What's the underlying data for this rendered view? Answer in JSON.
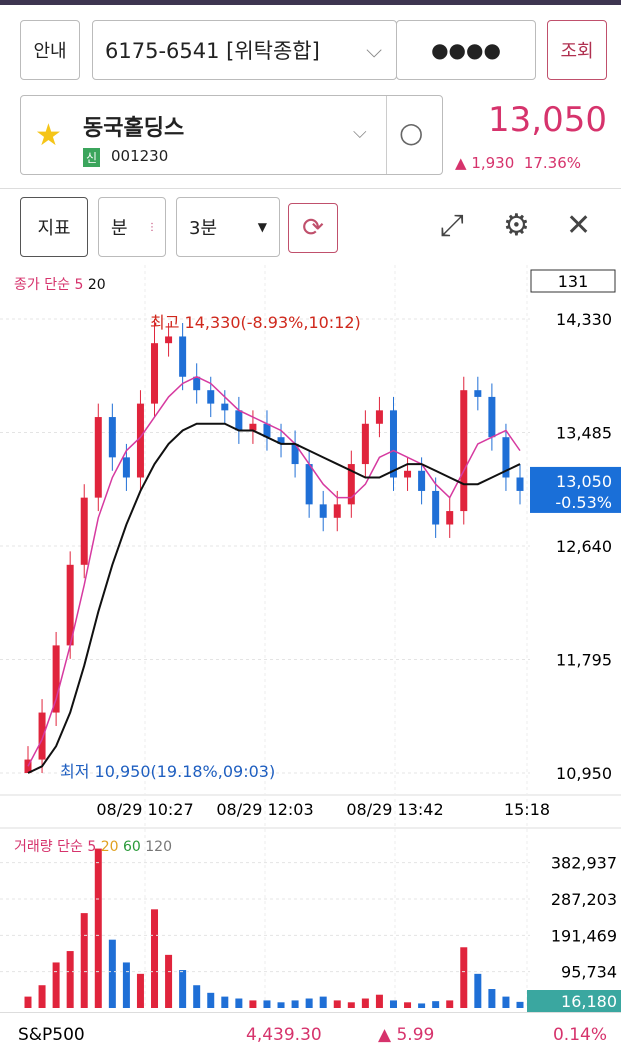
{
  "header": {
    "guide": "안내",
    "account": "6175-6541 [위탁종합]",
    "password": "●●●●",
    "query": "조회"
  },
  "stock": {
    "name": "동국홀딩스",
    "badge": "신",
    "code": "001230",
    "price": "13,050",
    "change": "1,930",
    "change_pct": "17.36%"
  },
  "toolbar": {
    "indicator": "지표",
    "period_type": "분",
    "period": "3분"
  },
  "price_chart": {
    "type": "candlestick",
    "legend_label": "종가 단순",
    "ma1": "5",
    "ma2": "20",
    "box_value": "131",
    "ylim": [
      10950,
      14330
    ],
    "yticks": [
      {
        "value": 14330,
        "label": "14,330"
      },
      {
        "value": 13485,
        "label": "13,485"
      },
      {
        "value": 12640,
        "label": "12,640"
      },
      {
        "value": 11795,
        "label": "11,795"
      },
      {
        "value": 10950,
        "label": "10,950"
      }
    ],
    "high_label": "최고 14,330(-8.93%,10:12)",
    "low_label": "최저 10,950(19.18%,09:03)",
    "current_price": "13,050",
    "current_pct": "-0.53%",
    "x_labels": [
      "08/29 10:27",
      "08/29 12:03",
      "08/29 13:42",
      "15:18"
    ],
    "open": [
      10950,
      11050,
      11400,
      11900,
      12500,
      13000,
      13600,
      13300,
      13150,
      13700,
      14150,
      14200,
      13900,
      13800,
      13700,
      13650,
      13500,
      13550,
      13450,
      13400,
      13250,
      12950,
      12850,
      12950,
      13250,
      13550,
      13650,
      13150,
      13200,
      13050,
      12800,
      12900,
      13800,
      13750,
      13450,
      13150
    ],
    "high": [
      11150,
      11500,
      12000,
      12600,
      13100,
      13700,
      13700,
      13400,
      13800,
      14330,
      14300,
      14300,
      14000,
      13900,
      13800,
      13750,
      13650,
      13650,
      13550,
      13500,
      13350,
      13050,
      13050,
      13350,
      13650,
      13750,
      13750,
      13300,
      13300,
      13150,
      13000,
      13900,
      13900,
      13850,
      13550,
      13250
    ],
    "low": [
      10950,
      10950,
      11300,
      11800,
      12400,
      12900,
      13200,
      13050,
      13050,
      13600,
      14050,
      13800,
      13700,
      13600,
      13550,
      13400,
      13400,
      13350,
      13300,
      13150,
      12850,
      12750,
      12750,
      12850,
      13150,
      13450,
      13050,
      13050,
      12950,
      12700,
      12700,
      12800,
      13650,
      13350,
      13050,
      12950
    ],
    "close": [
      11050,
      11400,
      11900,
      12500,
      13000,
      13600,
      13300,
      13150,
      13700,
      14150,
      14200,
      13900,
      13800,
      13700,
      13650,
      13500,
      13550,
      13450,
      13400,
      13250,
      12950,
      12850,
      12950,
      13250,
      13550,
      13650,
      13150,
      13200,
      13050,
      12800,
      12900,
      13800,
      13750,
      13450,
      13150,
      13050
    ],
    "ma5": [
      11000,
      11200,
      11500,
      11900,
      12350,
      12850,
      13150,
      13350,
      13450,
      13600,
      13750,
      13850,
      13900,
      13850,
      13750,
      13650,
      13600,
      13550,
      13500,
      13400,
      13250,
      13100,
      13000,
      13000,
      13100,
      13300,
      13350,
      13300,
      13250,
      13100,
      13000,
      13200,
      13400,
      13450,
      13500,
      13350
    ],
    "ma20": [
      10950,
      11000,
      11150,
      11400,
      11750,
      12150,
      12500,
      12800,
      13050,
      13250,
      13400,
      13500,
      13550,
      13550,
      13550,
      13500,
      13500,
      13450,
      13400,
      13400,
      13350,
      13300,
      13250,
      13200,
      13150,
      13150,
      13200,
      13250,
      13250,
      13200,
      13150,
      13100,
      13100,
      13150,
      13200,
      13250
    ]
  },
  "volume_chart": {
    "type": "bar",
    "legend_label": "거래량 단순",
    "ma1": "5",
    "ma2": "20",
    "ma3": "60",
    "ma4": "120",
    "ylim": [
      0,
      440000
    ],
    "yticks": [
      {
        "value": 382937,
        "label": "382,937"
      },
      {
        "value": 287203,
        "label": "287,203"
      },
      {
        "value": 191469,
        "label": "191,469"
      },
      {
        "value": 95734,
        "label": "95,734"
      }
    ],
    "current": "16,180",
    "values": [
      30000,
      60000,
      120000,
      150000,
      250000,
      420000,
      180000,
      120000,
      90000,
      260000,
      140000,
      100000,
      60000,
      40000,
      30000,
      25000,
      20000,
      20000,
      15000,
      20000,
      25000,
      30000,
      20000,
      15000,
      25000,
      35000,
      20000,
      15000,
      12000,
      18000,
      20000,
      160000,
      90000,
      50000,
      30000,
      16180
    ]
  },
  "footer": {
    "index": "S&P500",
    "value": "4,439.30",
    "change": "5.99",
    "pct": "0.14%"
  }
}
